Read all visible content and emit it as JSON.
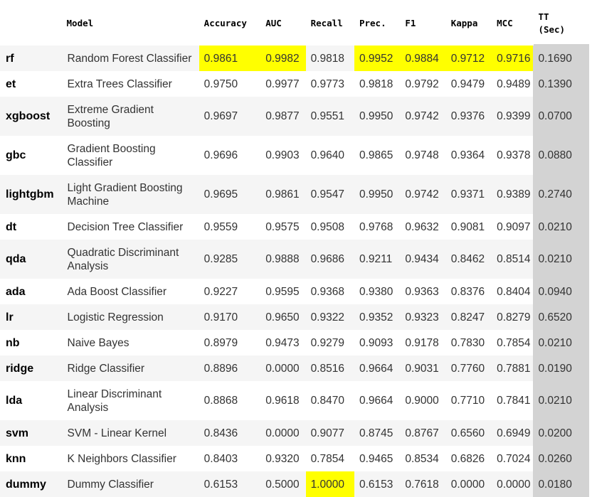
{
  "table": {
    "columns": [
      "",
      "Model",
      "Accuracy",
      "AUC",
      "Recall",
      "Prec.",
      "F1",
      "Kappa",
      "MCC",
      "TT\n(Sec)"
    ],
    "tt_header_line1": "TT",
    "tt_header_line2": "(Sec)",
    "highlight_color": "#ffff00",
    "tt_column_color": "#d3d3d3",
    "rows": [
      {
        "id": "rf",
        "model": "Random Forest Classifier",
        "accuracy": "0.9861",
        "auc": "0.9982",
        "recall": "0.9818",
        "prec": "0.9952",
        "f1": "0.9884",
        "kappa": "0.9712",
        "mcc": "0.9716",
        "tt": "0.1690",
        "highlight": [
          "accuracy",
          "auc",
          "prec",
          "f1",
          "kappa",
          "mcc"
        ]
      },
      {
        "id": "et",
        "model": "Extra Trees Classifier",
        "accuracy": "0.9750",
        "auc": "0.9977",
        "recall": "0.9773",
        "prec": "0.9818",
        "f1": "0.9792",
        "kappa": "0.9479",
        "mcc": "0.9489",
        "tt": "0.1390",
        "highlight": []
      },
      {
        "id": "xgboost",
        "model": "Extreme Gradient Boosting",
        "accuracy": "0.9697",
        "auc": "0.9877",
        "recall": "0.9551",
        "prec": "0.9950",
        "f1": "0.9742",
        "kappa": "0.9376",
        "mcc": "0.9399",
        "tt": "0.0700",
        "highlight": []
      },
      {
        "id": "gbc",
        "model": "Gradient Boosting Classifier",
        "accuracy": "0.9696",
        "auc": "0.9903",
        "recall": "0.9640",
        "prec": "0.9865",
        "f1": "0.9748",
        "kappa": "0.9364",
        "mcc": "0.9378",
        "tt": "0.0880",
        "highlight": []
      },
      {
        "id": "lightgbm",
        "model": "Light Gradient Boosting Machine",
        "accuracy": "0.9695",
        "auc": "0.9861",
        "recall": "0.9547",
        "prec": "0.9950",
        "f1": "0.9742",
        "kappa": "0.9371",
        "mcc": "0.9389",
        "tt": "0.2740",
        "highlight": []
      },
      {
        "id": "dt",
        "model": "Decision Tree Classifier",
        "accuracy": "0.9559",
        "auc": "0.9575",
        "recall": "0.9508",
        "prec": "0.9768",
        "f1": "0.9632",
        "kappa": "0.9081",
        "mcc": "0.9097",
        "tt": "0.0210",
        "highlight": []
      },
      {
        "id": "qda",
        "model": "Quadratic Discriminant Analysis",
        "accuracy": "0.9285",
        "auc": "0.9888",
        "recall": "0.9686",
        "prec": "0.9211",
        "f1": "0.9434",
        "kappa": "0.8462",
        "mcc": "0.8514",
        "tt": "0.0210",
        "highlight": []
      },
      {
        "id": "ada",
        "model": "Ada Boost Classifier",
        "accuracy": "0.9227",
        "auc": "0.9595",
        "recall": "0.9368",
        "prec": "0.9380",
        "f1": "0.9363",
        "kappa": "0.8376",
        "mcc": "0.8404",
        "tt": "0.0940",
        "highlight": []
      },
      {
        "id": "lr",
        "model": "Logistic Regression",
        "accuracy": "0.9170",
        "auc": "0.9650",
        "recall": "0.9322",
        "prec": "0.9352",
        "f1": "0.9323",
        "kappa": "0.8247",
        "mcc": "0.8279",
        "tt": "0.6520",
        "highlight": []
      },
      {
        "id": "nb",
        "model": "Naive Bayes",
        "accuracy": "0.8979",
        "auc": "0.9473",
        "recall": "0.9279",
        "prec": "0.9093",
        "f1": "0.9178",
        "kappa": "0.7830",
        "mcc": "0.7854",
        "tt": "0.0210",
        "highlight": []
      },
      {
        "id": "ridge",
        "model": "Ridge Classifier",
        "accuracy": "0.8896",
        "auc": "0.0000",
        "recall": "0.8516",
        "prec": "0.9664",
        "f1": "0.9031",
        "kappa": "0.7760",
        "mcc": "0.7881",
        "tt": "0.0190",
        "highlight": []
      },
      {
        "id": "lda",
        "model": "Linear Discriminant Analysis",
        "accuracy": "0.8868",
        "auc": "0.9618",
        "recall": "0.8470",
        "prec": "0.9664",
        "f1": "0.9000",
        "kappa": "0.7710",
        "mcc": "0.7841",
        "tt": "0.0210",
        "highlight": []
      },
      {
        "id": "svm",
        "model": "SVM - Linear Kernel",
        "accuracy": "0.8436",
        "auc": "0.0000",
        "recall": "0.9077",
        "prec": "0.8745",
        "f1": "0.8767",
        "kappa": "0.6560",
        "mcc": "0.6949",
        "tt": "0.0200",
        "highlight": []
      },
      {
        "id": "knn",
        "model": "K Neighbors Classifier",
        "accuracy": "0.8403",
        "auc": "0.9320",
        "recall": "0.7854",
        "prec": "0.9465",
        "f1": "0.8534",
        "kappa": "0.6826",
        "mcc": "0.7024",
        "tt": "0.0260",
        "highlight": []
      },
      {
        "id": "dummy",
        "model": "Dummy Classifier",
        "accuracy": "0.6153",
        "auc": "0.5000",
        "recall": "1.0000",
        "prec": "0.6153",
        "f1": "0.7618",
        "kappa": "0.0000",
        "mcc": "0.0000",
        "tt": "0.0180",
        "highlight": [
          "recall"
        ]
      }
    ]
  }
}
